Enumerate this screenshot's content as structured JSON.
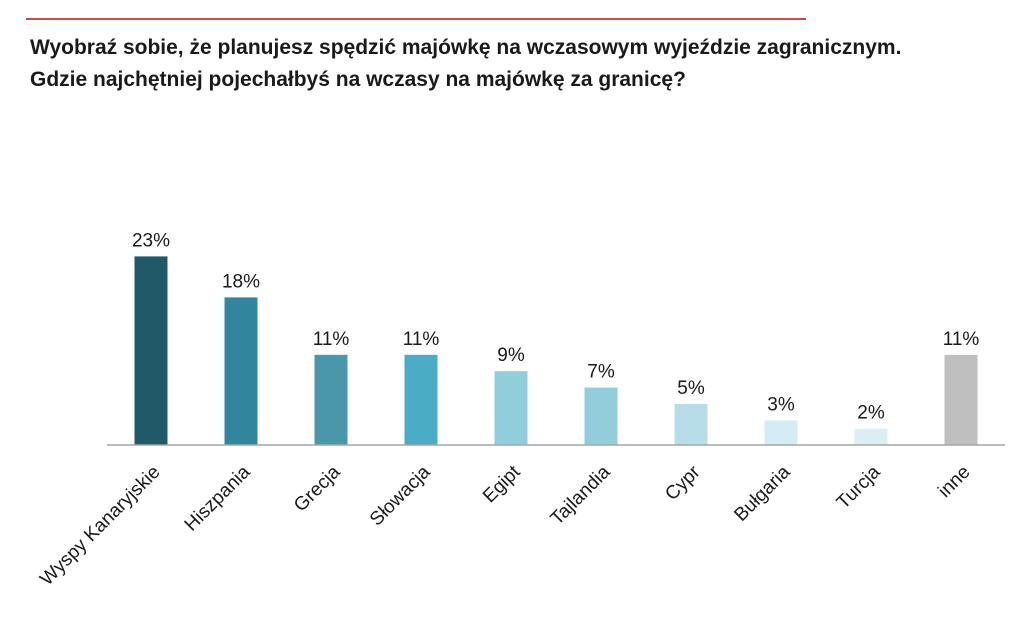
{
  "title": {
    "line1": "Wyobraź sobie, że planujesz spędzić majówkę na wczasowym wyjeździe zagranicznym.",
    "line2": "Gdzie najchętniej pojechałbyś na wczasy na majówkę za granicę?"
  },
  "chart_data": {
    "type": "bar",
    "categories": [
      "Wyspy Kanaryjskie",
      "Hiszpania",
      "Grecja",
      "Słowacja",
      "Egipt",
      "Tajlandia",
      "Cypr",
      "Bułgaria",
      "Turcja",
      "inne"
    ],
    "values": [
      23,
      18,
      11,
      11,
      9,
      7,
      5,
      3,
      2,
      11
    ],
    "value_labels": [
      "23%",
      "18%",
      "11%",
      "11%",
      "9%",
      "7%",
      "5%",
      "3%",
      "2%",
      "11%"
    ],
    "colors": [
      "#215968",
      "#31859c",
      "#4a96aa",
      "#4bacc6",
      "#92cddc",
      "#93cddc",
      "#b7dee8",
      "#d4ecf3",
      "#dbeef4",
      "#bfbfbf"
    ],
    "unit": "%",
    "xlabel": "",
    "ylabel": "",
    "grid": false,
    "legend": "none"
  }
}
